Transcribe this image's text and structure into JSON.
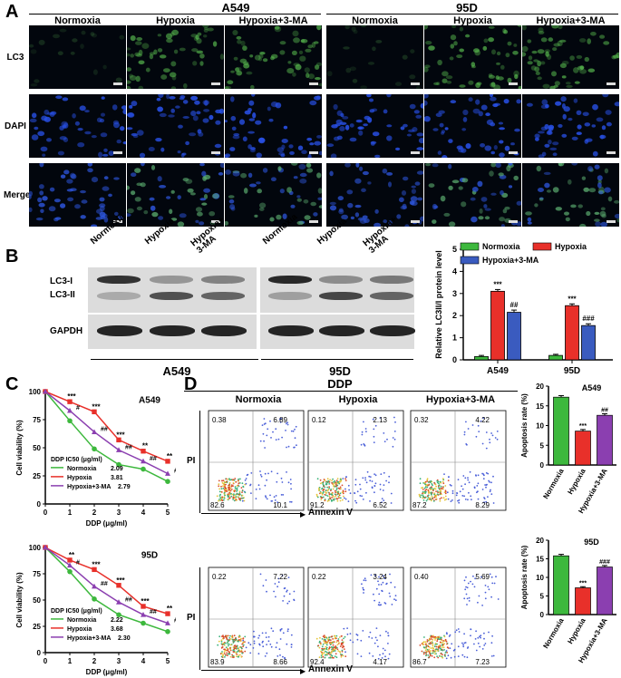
{
  "panelA": {
    "letter": "A",
    "groups": [
      "A549",
      "95D"
    ],
    "columns": [
      "Normoxia",
      "Hypoxia",
      "Hypoxia+3-MA",
      "Normoxia",
      "Hypoxia",
      "Hypoxia+3-MA"
    ],
    "rows": [
      "LC3",
      "DAPI",
      "Merge"
    ]
  },
  "panelB": {
    "letter": "B",
    "lanes": [
      "Normoxia",
      "Hypoxia",
      "Hypoxia+\n3-MA",
      "Normoxia",
      "Hypoxia",
      "Hypoxia+\n3-MA"
    ],
    "bands": [
      "LC3-I",
      "LC3-II",
      "GAPDH"
    ],
    "groups": [
      "A549",
      "95D"
    ]
  },
  "panelC": {
    "letter": "C"
  },
  "panelD": {
    "letter": "D",
    "title": "DDP",
    "columns": [
      "Normoxia",
      "Hypoxia",
      "Hypoxia+3-MA"
    ],
    "ylabel": "PI",
    "xlabel": "Annexin V",
    "a549_quadrants": [
      [
        "0.38",
        "6.89",
        "82.6",
        "10.1"
      ],
      [
        "0.12",
        "2.13",
        "91.2",
        "6.52"
      ],
      [
        "0.32",
        "4.22",
        "87.2",
        "8.29"
      ]
    ],
    "d95_quadrants": [
      [
        "0.22",
        "7.22",
        "83.9",
        "8.66"
      ],
      [
        "0.22",
        "3.24",
        "92.4",
        "4.17"
      ],
      [
        "0.40",
        "5.69",
        "86.7",
        "7.23"
      ]
    ]
  },
  "colors": {
    "normoxia": "#3db83d",
    "hypoxia": "#e8302a",
    "hypoxia3ma": "#3a5bbf",
    "purple": "#8b3fb0"
  },
  "chart_data": [
    {
      "type": "bar",
      "ylabel": "Relative LC3II/I protein level",
      "ylim": [
        0,
        5
      ],
      "categories": [
        "A549",
        "95D"
      ],
      "series": [
        {
          "name": "Normoxia",
          "values": [
            0.15,
            0.2
          ],
          "errors": [
            0.05,
            0.05
          ]
        },
        {
          "name": "Hypoxia",
          "values": [
            3.1,
            2.45
          ],
          "errors": [
            0.08,
            0.08
          ]
        },
        {
          "name": "Hypoxia+3-MA",
          "values": [
            2.15,
            1.55
          ],
          "errors": [
            0.1,
            0.08
          ]
        }
      ],
      "annotations": [
        {
          "series": "Hypoxia",
          "category": "A549",
          "text": "***"
        },
        {
          "series": "Hypoxia+3-MA",
          "category": "A549",
          "text": "##"
        },
        {
          "series": "Hypoxia",
          "category": "95D",
          "text": "***"
        },
        {
          "series": "Hypoxia+3-MA",
          "category": "95D",
          "text": "###"
        }
      ],
      "legend": "top"
    },
    {
      "type": "line",
      "title": "A549",
      "xlabel": "DDP (μg/ml)",
      "ylabel": "Cell viability (%)",
      "xlim": [
        0,
        5
      ],
      "ylim": [
        0,
        100
      ],
      "x": [
        0,
        1,
        2,
        3,
        4,
        5
      ],
      "series": [
        {
          "name": "Normoxia",
          "values": [
            100,
            74,
            49,
            35,
            31,
            20
          ]
        },
        {
          "name": "Hypoxia",
          "values": [
            100,
            91,
            82,
            57,
            47,
            38
          ]
        },
        {
          "name": "Hypoxia+3-MA",
          "values": [
            100,
            83,
            64,
            48,
            38,
            27
          ]
        }
      ],
      "legend_title": "DDP IC50 (μg/ml)",
      "ic50": [
        "2.09",
        "3.81",
        "2.79"
      ],
      "annotations": [
        "***",
        "#",
        "***",
        "##",
        "***",
        "##",
        "**",
        "##",
        "**",
        "##"
      ]
    },
    {
      "type": "line",
      "title": "95D",
      "xlabel": "DDP (μg/ml)",
      "ylabel": "Cell viability (%)",
      "xlim": [
        0,
        5
      ],
      "ylim": [
        0,
        100
      ],
      "x": [
        0,
        1,
        2,
        3,
        4,
        5
      ],
      "series": [
        {
          "name": "Normoxia",
          "values": [
            100,
            77,
            51,
            36,
            28,
            20
          ]
        },
        {
          "name": "Hypoxia",
          "values": [
            100,
            88,
            79,
            64,
            44,
            37
          ]
        },
        {
          "name": "Hypoxia+3-MA",
          "values": [
            100,
            83,
            63,
            48,
            36,
            28
          ]
        }
      ],
      "legend_title": "DDP IC50 (μg/ml)",
      "ic50": [
        "2.22",
        "3.68",
        "2.30"
      ],
      "annotations": [
        "**",
        "#",
        "***",
        "##",
        "***",
        "##",
        "***",
        "##",
        "**",
        "#"
      ]
    },
    {
      "type": "bar",
      "title": "A549",
      "ylabel": "Apoptosis rate (%)",
      "ylim": [
        0,
        20
      ],
      "categories": [
        "Normoxia",
        "Hypoxia",
        "Hypoxia+3-MA"
      ],
      "values": [
        17.2,
        8.6,
        12.6
      ],
      "errors": [
        0.4,
        0.4,
        0.4
      ],
      "annotations": [
        "",
        "***",
        "##"
      ]
    },
    {
      "type": "bar",
      "title": "95D",
      "ylabel": "Apoptosis rate (%)",
      "ylim": [
        0,
        20
      ],
      "categories": [
        "Normoxia",
        "Hypoxia",
        "Hypoxia+3-MA"
      ],
      "values": [
        15.8,
        7.2,
        12.8
      ],
      "errors": [
        0.4,
        0.3,
        0.4
      ],
      "annotations": [
        "",
        "***",
        "###"
      ]
    }
  ]
}
